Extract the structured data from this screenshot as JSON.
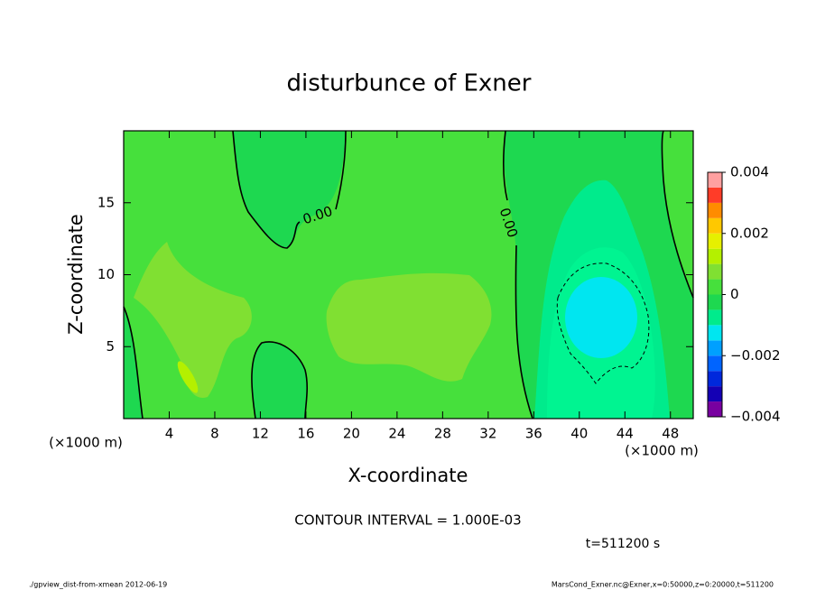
{
  "chart_data": {
    "type": "contour",
    "title": "disturbunce of Exner",
    "xlabel": "X-coordinate",
    "ylabel": "Z-coordinate",
    "xunit": "(×1000 m)",
    "yunit": "(×1000 m)",
    "xlim": [
      0,
      50
    ],
    "ylim": [
      0,
      20
    ],
    "xticks": [
      4,
      8,
      12,
      16,
      20,
      24,
      28,
      32,
      36,
      40,
      44,
      48
    ],
    "yticks": [
      5,
      10,
      15
    ],
    "contour_labels": [
      {
        "value": 0,
        "label": "0.00"
      },
      {
        "value": 0,
        "label": "0.00"
      }
    ],
    "colorbar": {
      "lim": [
        -0.004,
        0.004
      ],
      "ticks": [
        {
          "value": -0.004,
          "label": "−0.004"
        },
        {
          "value": -0.002,
          "label": "−0.002"
        },
        0,
        0.002,
        0.004
      ],
      "levels": [
        -0.004,
        -0.0035,
        -0.003,
        -0.0025,
        -0.002,
        -0.0015,
        -0.001,
        -0.0005,
        0,
        0.0005,
        0.001,
        0.0015,
        0.002,
        0.0025,
        0.003,
        0.0035,
        0.004
      ],
      "colors": [
        "#7800a0",
        "#1400b4",
        "#0028dc",
        "#0064ff",
        "#00a0ff",
        "#00e6f0",
        "#00eb8c",
        "#1ed850",
        "#46e03c",
        "#80e032",
        "#b4f000",
        "#e6f000",
        "#ffc800",
        "#ff8c00",
        "#ff3c28",
        "#ffa0a0"
      ]
    },
    "annotations": [
      "CONTOUR INTERVAL = 1.000E-03",
      "t=511200 s"
    ],
    "footer_left": "./gpview_dist-from-xmean  2012-06-19",
    "footer_right": "MarsCond_Exner.nc@Exner,x=0:50000,z=0:20000,t=511200"
  }
}
